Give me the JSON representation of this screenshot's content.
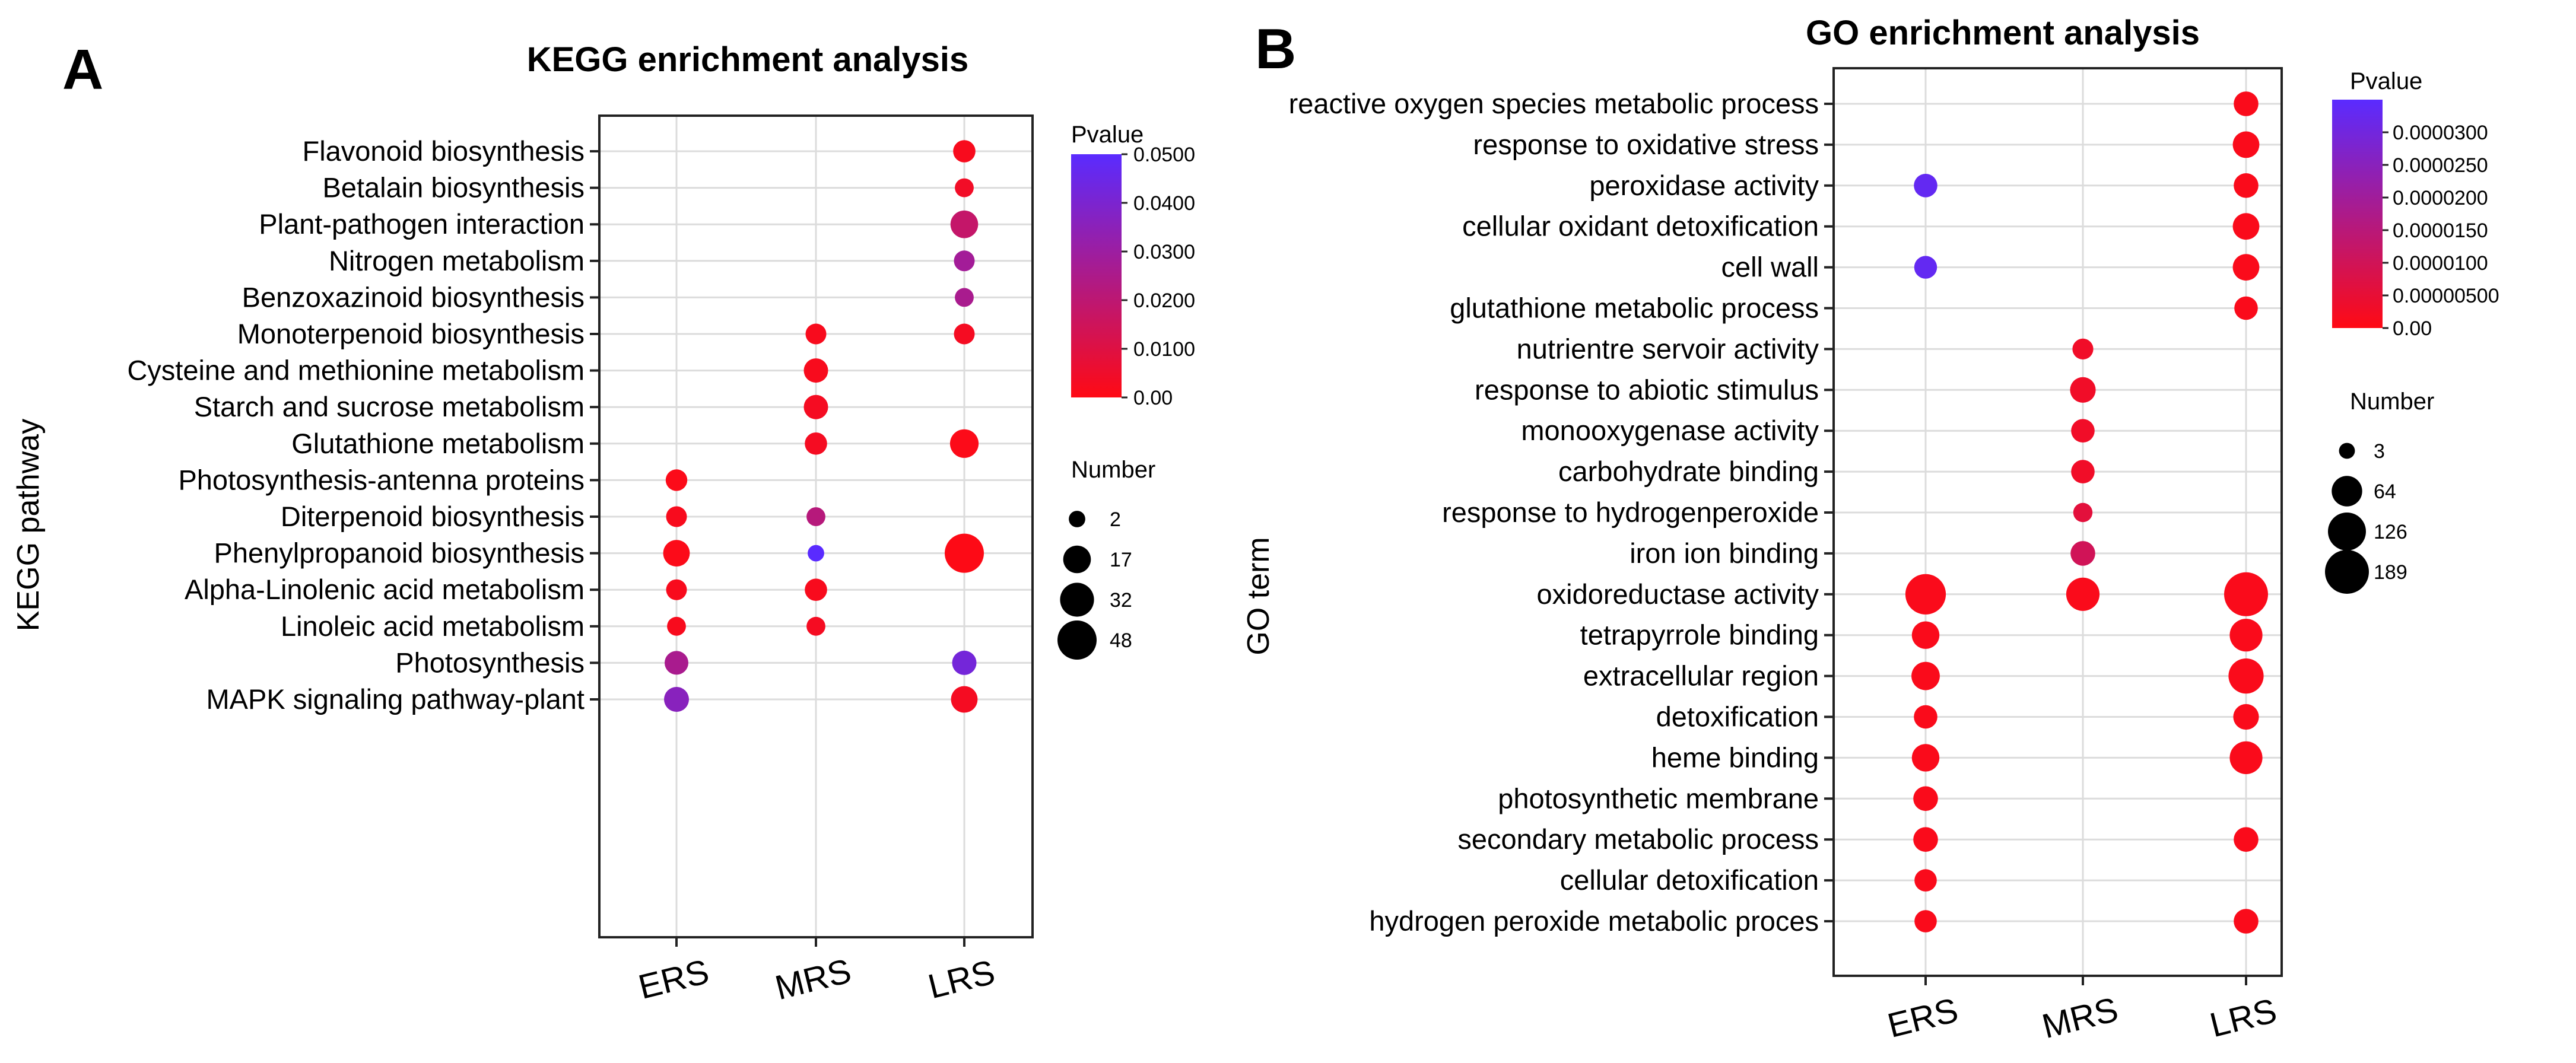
{
  "chart_data": [
    {
      "type": "scatter",
      "panel_letter": "A",
      "title": "KEGG enrichment analysis",
      "ylabel": "KEGG pathway",
      "xlabel": "",
      "groups": [
        "ERS",
        "MRS",
        "LRS"
      ],
      "terms": [
        "Flavonoid biosynthesis",
        "Betalain biosynthesis",
        "Plant-pathogen interaction",
        "Nitrogen metabolism",
        "Benzoxazinoid biosynthesis",
        "Monoterpenoid biosynthesis",
        "Cysteine and methionine metabolism",
        "Starch and sucrose metabolism",
        "Glutathione metabolism",
        "Photosynthesis-antenna proteins",
        "Diterpenoid biosynthesis",
        "Phenylpropanoid biosynthesis",
        "Alpha-Linolenic acid metabolism",
        "Linoleic acid metabolism",
        "Photosynthesis",
        "MAPK signaling pathway-plant"
      ],
      "points": [
        {
          "term": "Flavonoid biosynthesis",
          "group": "LRS",
          "number": 8,
          "pvalue": 0.002
        },
        {
          "term": "Betalain biosynthesis",
          "group": "LRS",
          "number": 4,
          "pvalue": 0.004
        },
        {
          "term": "Plant-pathogen interaction",
          "group": "LRS",
          "number": 17,
          "pvalue": 0.018
        },
        {
          "term": "Nitrogen metabolism",
          "group": "LRS",
          "number": 6,
          "pvalue": 0.028
        },
        {
          "term": "Benzoxazinoid biosynthesis",
          "group": "LRS",
          "number": 4,
          "pvalue": 0.026
        },
        {
          "term": "Monoterpenoid biosynthesis",
          "group": "MRS",
          "number": 6,
          "pvalue": 0.002
        },
        {
          "term": "Monoterpenoid biosynthesis",
          "group": "LRS",
          "number": 6,
          "pvalue": 0.003
        },
        {
          "term": "Cysteine and methionine metabolism",
          "group": "MRS",
          "number": 11,
          "pvalue": 0.002
        },
        {
          "term": "Starch and sucrose metabolism",
          "group": "MRS",
          "number": 11,
          "pvalue": 0.003
        },
        {
          "term": "Glutathione metabolism",
          "group": "MRS",
          "number": 8,
          "pvalue": 0.003
        },
        {
          "term": "Glutathione metabolism",
          "group": "LRS",
          "number": 19,
          "pvalue": 0.001
        },
        {
          "term": "Photosynthesis-antenna proteins",
          "group": "ERS",
          "number": 7,
          "pvalue": 0.001
        },
        {
          "term": "Diterpenoid biosynthesis",
          "group": "ERS",
          "number": 6,
          "pvalue": 0.002
        },
        {
          "term": "Diterpenoid biosynthesis",
          "group": "MRS",
          "number": 4,
          "pvalue": 0.022
        },
        {
          "term": "Phenylpropanoid biosynthesis",
          "group": "ERS",
          "number": 15,
          "pvalue": 0.001
        },
        {
          "term": "Phenylpropanoid biosynthesis",
          "group": "MRS",
          "number": 2,
          "pvalue": 0.05
        },
        {
          "term": "Phenylpropanoid biosynthesis",
          "group": "LRS",
          "number": 48,
          "pvalue": 0.0005
        },
        {
          "term": "Alpha-Linolenic acid metabolism",
          "group": "ERS",
          "number": 6,
          "pvalue": 0.002
        },
        {
          "term": "Alpha-Linolenic acid metabolism",
          "group": "MRS",
          "number": 8,
          "pvalue": 0.002
        },
        {
          "term": "Linoleic acid metabolism",
          "group": "ERS",
          "number": 4,
          "pvalue": 0.002
        },
        {
          "term": "Linoleic acid metabolism",
          "group": "MRS",
          "number": 4,
          "pvalue": 0.003
        },
        {
          "term": "Photosynthesis",
          "group": "ERS",
          "number": 10,
          "pvalue": 0.026
        },
        {
          "term": "Photosynthesis",
          "group": "LRS",
          "number": 11,
          "pvalue": 0.042
        },
        {
          "term": "MAPK signaling pathway-plant",
          "group": "ERS",
          "number": 12,
          "pvalue": 0.036
        },
        {
          "term": "MAPK signaling pathway-plant",
          "group": "LRS",
          "number": 15,
          "pvalue": 0.003
        }
      ],
      "color_scale": {
        "title": "Pvalue",
        "min": 0.0,
        "max": 0.05,
        "ticks": [
          "0.0500",
          "0.0400",
          "0.0300",
          "0.0200",
          "0.0100",
          "0.00"
        ],
        "tick_values": [
          0.05,
          0.04,
          0.03,
          0.02,
          0.01,
          0.0
        ],
        "low_color": "#ff0a14",
        "high_color": "#5a2bff"
      },
      "size_legend": {
        "title": "Number",
        "values": [
          2,
          17,
          32,
          48
        ],
        "labels": [
          "2",
          "17",
          "32",
          "48"
        ],
        "max": 48
      }
    },
    {
      "type": "scatter",
      "panel_letter": "B",
      "title": "GO enrichment analysis",
      "ylabel": "GO term",
      "xlabel": "",
      "groups": [
        "ERS",
        "MRS",
        "LRS"
      ],
      "terms": [
        "reactive oxygen species metabolic process",
        "response to oxidative stress",
        "peroxidase activity",
        "cellular oxidant detoxification",
        "cell wall",
        "glutathione metabolic process",
        "nutrientre servoir activity",
        "response to abiotic stimulus",
        "monooxygenase activity",
        "carbohydrate binding",
        "response to hydrogenperoxide",
        "iron ion binding",
        "oxidoreductase activity",
        "tetrapyrrole binding",
        "extracellular region",
        "detoxification",
        "heme binding",
        "photosynthetic membrane",
        "secondary metabolic process",
        "cellular detoxification",
        "hydrogen peroxide metabolic proces"
      ],
      "points": [
        {
          "term": "reactive oxygen species metabolic process",
          "group": "LRS",
          "number": 30,
          "pvalue": 1e-06
        },
        {
          "term": "response to oxidative stress",
          "group": "LRS",
          "number": 40,
          "pvalue": 1e-06
        },
        {
          "term": "peroxidase activity",
          "group": "ERS",
          "number": 25,
          "pvalue": 3.3e-05
        },
        {
          "term": "peroxidase activity",
          "group": "LRS",
          "number": 30,
          "pvalue": 1e-06
        },
        {
          "term": "cellular oxidant detoxification",
          "group": "LRS",
          "number": 40,
          "pvalue": 1e-06
        },
        {
          "term": "cell wall",
          "group": "ERS",
          "number": 22,
          "pvalue": 3.3e-05
        },
        {
          "term": "cell wall",
          "group": "LRS",
          "number": 40,
          "pvalue": 1e-06
        },
        {
          "term": "glutathione metabolic process",
          "group": "LRS",
          "number": 25,
          "pvalue": 1e-06
        },
        {
          "term": "nutrientre servoir activity",
          "group": "MRS",
          "number": 15,
          "pvalue": 3e-06
        },
        {
          "term": "response to abiotic stimulus",
          "group": "MRS",
          "number": 35,
          "pvalue": 3e-06
        },
        {
          "term": "monooxygenase activity",
          "group": "MRS",
          "number": 25,
          "pvalue": 3e-06
        },
        {
          "term": "carbohydrate binding",
          "group": "MRS",
          "number": 25,
          "pvalue": 3e-06
        },
        {
          "term": "response to hydrogenperoxide",
          "group": "MRS",
          "number": 10,
          "pvalue": 6e-06
        },
        {
          "term": "iron ion binding",
          "group": "MRS",
          "number": 30,
          "pvalue": 1e-05
        },
        {
          "term": "oxidoreductase activity",
          "group": "ERS",
          "number": 150,
          "pvalue": 1e-06
        },
        {
          "term": "oxidoreductase activity",
          "group": "MRS",
          "number": 85,
          "pvalue": 1e-06
        },
        {
          "term": "oxidoreductase activity",
          "group": "LRS",
          "number": 189,
          "pvalue": 1e-06
        },
        {
          "term": "tetrapyrrole binding",
          "group": "ERS",
          "number": 45,
          "pvalue": 1e-06
        },
        {
          "term": "tetrapyrrole binding",
          "group": "LRS",
          "number": 80,
          "pvalue": 1e-06
        },
        {
          "term": "extracellular region",
          "group": "ERS",
          "number": 50,
          "pvalue": 1e-06
        },
        {
          "term": "extracellular region",
          "group": "LRS",
          "number": 100,
          "pvalue": 1e-06
        },
        {
          "term": "detoxification",
          "group": "ERS",
          "number": 25,
          "pvalue": 1e-06
        },
        {
          "term": "detoxification",
          "group": "LRS",
          "number": 35,
          "pvalue": 1e-06
        },
        {
          "term": "heme binding",
          "group": "ERS",
          "number": 45,
          "pvalue": 1e-06
        },
        {
          "term": "heme binding",
          "group": "LRS",
          "number": 80,
          "pvalue": 1e-06
        },
        {
          "term": "photosynthetic membrane",
          "group": "ERS",
          "number": 30,
          "pvalue": 1e-06
        },
        {
          "term": "secondary metabolic process",
          "group": "ERS",
          "number": 30,
          "pvalue": 1e-06
        },
        {
          "term": "secondary metabolic process",
          "group": "LRS",
          "number": 30,
          "pvalue": 1e-06
        },
        {
          "term": "cellular detoxification",
          "group": "ERS",
          "number": 20,
          "pvalue": 1e-06
        },
        {
          "term": "hydrogen peroxide metabolic proces",
          "group": "ERS",
          "number": 20,
          "pvalue": 1e-06
        },
        {
          "term": "hydrogen peroxide metabolic proces",
          "group": "LRS",
          "number": 30,
          "pvalue": 1e-06
        }
      ],
      "color_scale": {
        "title": "Pvalue",
        "min": 0.0,
        "max": 3.5e-05,
        "ticks": [
          "0.0000300",
          "0.0000250",
          "0.0000200",
          "0.0000150",
          "0.0000100",
          "0.00000500",
          "0.00"
        ],
        "tick_values": [
          3e-05,
          2.5e-05,
          2e-05,
          1.5e-05,
          1e-05,
          5e-06,
          0.0
        ],
        "low_color": "#ff0a14",
        "high_color": "#5a2bff"
      },
      "size_legend": {
        "title": "Number",
        "values": [
          3,
          64,
          126,
          189
        ],
        "labels": [
          "3",
          "64",
          "126",
          "189"
        ],
        "max": 189
      }
    }
  ]
}
